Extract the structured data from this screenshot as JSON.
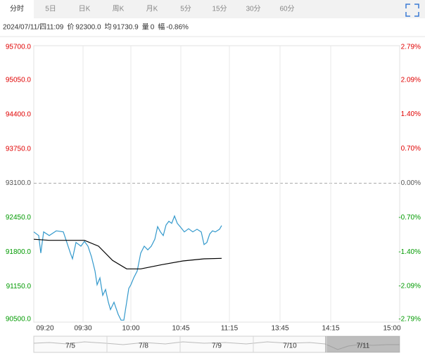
{
  "tabs": [
    "分时",
    "5日",
    "日K",
    "周K",
    "月K",
    "5分",
    "15分",
    "30分",
    "60分"
  ],
  "info": [
    "2024/07/11/四11:09",
    "价",
    "92300.0",
    "均",
    "91730.9",
    "量",
    "0",
    "幅",
    "-0.86%"
  ],
  "chart_data": {
    "type": "line",
    "x": [
      0,
      3.5,
      5,
      7,
      11,
      16,
      21,
      23.5,
      26,
      27.5,
      30,
      33.5,
      36,
      38.5,
      41,
      43.5,
      45,
      47,
      49,
      51,
      53,
      54.5,
      57,
      60,
      62,
      64,
      66,
      67.5,
      69,
      71,
      73.5,
      76,
      78.5,
      81,
      83.5,
      86,
      88,
      90,
      92,
      94,
      96,
      98,
      100,
      102,
      104,
      107,
      110,
      113,
      116,
      119,
      121,
      123,
      125,
      127,
      129,
      132,
      133.5
    ],
    "series": [
      {
        "color": "#3399cc",
        "values": [
          92180,
          92110,
          91780,
          92180,
          92110,
          92200,
          92180,
          91980,
          91780,
          91670,
          91980,
          91910,
          92000,
          91910,
          91710,
          91440,
          91180,
          91310,
          90980,
          91090,
          90850,
          90710,
          90850,
          90620,
          90510,
          90510,
          90850,
          91110,
          91180,
          91310,
          91440,
          91780,
          91910,
          91840,
          91910,
          92040,
          92280,
          92180,
          92110,
          92310,
          92380,
          92340,
          92480,
          92340,
          92280,
          92180,
          92240,
          92180,
          92230,
          92180,
          91940,
          91980,
          92140,
          92200,
          92180,
          92230,
          92300
        ]
      }
    ],
    "avg_x": [
      0,
      11,
      26,
      36,
      46,
      56,
      66,
      76,
      91,
      106,
      121,
      133.5
    ],
    "avg_series": {
      "color": "#000000",
      "values": [
        92040,
        92020,
        92020,
        92020,
        91910,
        91640,
        91480,
        91480,
        91560,
        91630,
        91670,
        91680
      ]
    },
    "xlim": [
      0,
      260
    ],
    "xticks": [
      {
        "value": 8,
        "label": "09:20"
      },
      {
        "value": 35,
        "label": "09:30"
      },
      {
        "value": 69,
        "label": "10:00"
      },
      {
        "value": 104.5,
        "label": "10:45"
      },
      {
        "value": 139,
        "label": "11:15"
      },
      {
        "value": 175,
        "label": "13:45"
      },
      {
        "value": 211,
        "label": "14:15"
      },
      {
        "value": 254.5,
        "label": "15:00"
      }
    ],
    "ylim": [
      90500,
      95700
    ],
    "yticks": [
      {
        "value": 95700,
        "label": "95700.0"
      },
      {
        "value": 95050,
        "label": "95050.0"
      },
      {
        "value": 94400,
        "label": "94400.0"
      },
      {
        "value": 93750,
        "label": "93750.0"
      },
      {
        "value": 93100,
        "label": "93100.0"
      },
      {
        "value": 92450,
        "label": "92450.0"
      },
      {
        "value": 91800,
        "label": "91800.0"
      },
      {
        "value": 91150,
        "label": "91150.0"
      },
      {
        "value": 90500,
        "label": "90500.0"
      }
    ],
    "y2lim": [
      -2.79,
      2.79
    ],
    "y2ticks": [
      {
        "value": 2.79,
        "label": "2.79%"
      },
      {
        "value": 2.09,
        "label": "2.09%"
      },
      {
        "value": 1.4,
        "label": "1.40%"
      },
      {
        "value": 0.7,
        "label": "0.70%"
      },
      {
        "value": 0,
        "label": "0.00%"
      },
      {
        "value": -0.7,
        "label": "-0.70%"
      },
      {
        "value": -1.4,
        "label": "-1.40%"
      },
      {
        "value": -2.09,
        "label": "-2.09%"
      },
      {
        "value": -2.79,
        "label": "-2.79%"
      }
    ],
    "colors": {
      "up": "#e00000",
      "down": "#009a00",
      "flat": "#555555"
    },
    "navigator": [
      "7/5",
      "7/8",
      "7/9",
      "7/10",
      "7/11"
    ]
  }
}
